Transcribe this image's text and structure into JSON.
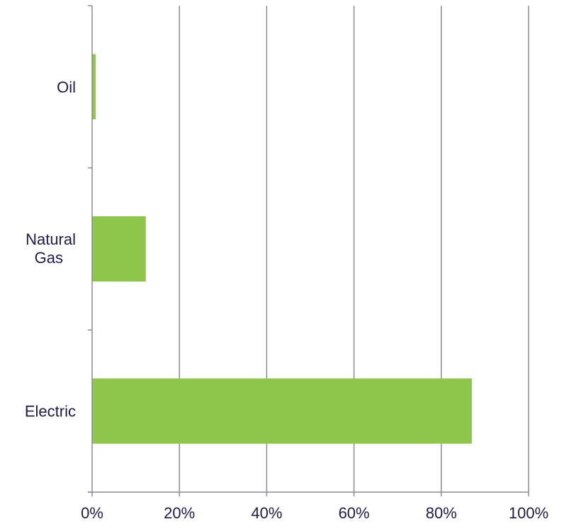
{
  "chart_data": {
    "type": "bar",
    "orientation": "horizontal",
    "categories": [
      "Electric",
      "Natural Gas",
      "Oil"
    ],
    "values": [
      87,
      12.3,
      0.8
    ],
    "unit": "%",
    "xlim": [
      0,
      100
    ],
    "xticks": [
      0,
      20,
      40,
      60,
      80,
      100
    ],
    "xtick_labels": [
      "0%",
      "20%",
      "40%",
      "60%",
      "80%",
      "100%"
    ],
    "title": "",
    "xlabel": "",
    "ylabel": "",
    "grid": "vertical",
    "legend": "none",
    "colors": {
      "bar": "#8dc64a",
      "grid": "#8c8c9c",
      "axis": "#8c8c9c",
      "text": "#1e1b4b"
    }
  }
}
